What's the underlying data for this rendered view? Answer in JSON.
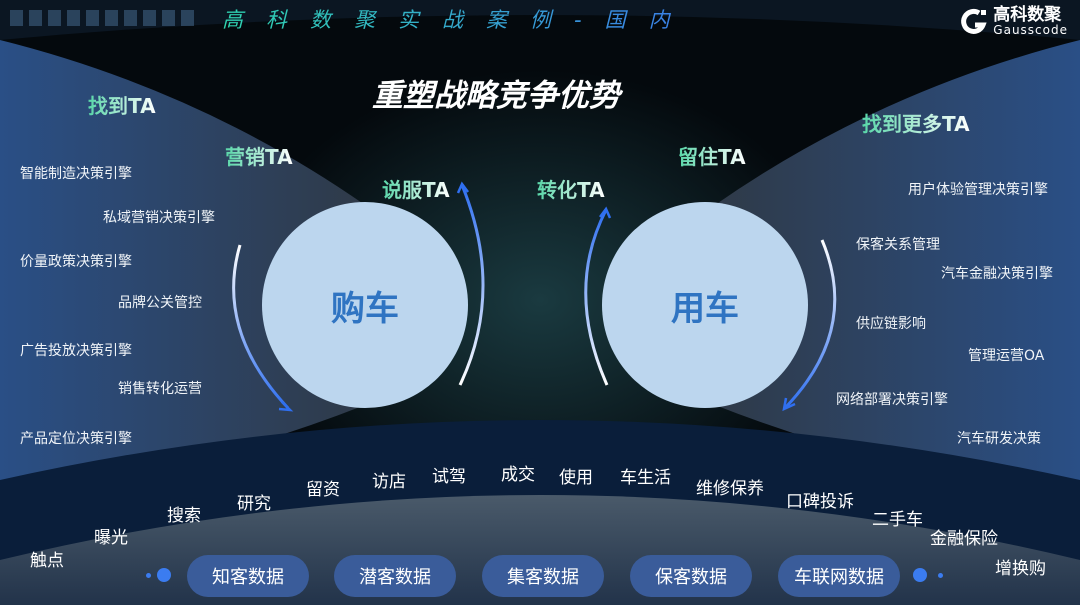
{
  "header": {
    "title": "高科数聚实战案例-国内",
    "logo_cn": "高科数聚",
    "logo_en": "Gausscode"
  },
  "main_title": "重塑战略竞争优势",
  "ta_labels": [
    "找到TA",
    "营销TA",
    "说服TA",
    "转化TA",
    "留住TA",
    "找到更多TA"
  ],
  "circles": {
    "left": "购车",
    "right": "用车"
  },
  "left_engines": [
    "智能制造决策引擎",
    "私域营销决策引擎",
    "价量政策决策引擎",
    "品牌公关管控",
    "广告投放决策引擎",
    "销售转化运营",
    "产品定位决策引擎"
  ],
  "right_engines": [
    "用户体验管理决策引擎",
    "保客关系管理",
    "汽车金融决策引擎",
    "供应链影响",
    "管理运营OA",
    "网络部署决策引擎",
    "汽车研发决策"
  ],
  "stages": [
    "触点",
    "曝光",
    "搜索",
    "研究",
    "留资",
    "访店",
    "试驾",
    "成交",
    "使用",
    "车生活",
    "维修保养",
    "口碑投诉",
    "二手车",
    "金融保险",
    "增换购"
  ],
  "data_pills": [
    "知客数据",
    "潜客数据",
    "集客数据",
    "保客数据",
    "车联网数据"
  ],
  "colors": {
    "accent": "#3b7cf0",
    "circle": "#bcd6ee",
    "circle_text": "#2f74c2",
    "ta": "#58d6a8",
    "pill": "#3a5c9a"
  }
}
